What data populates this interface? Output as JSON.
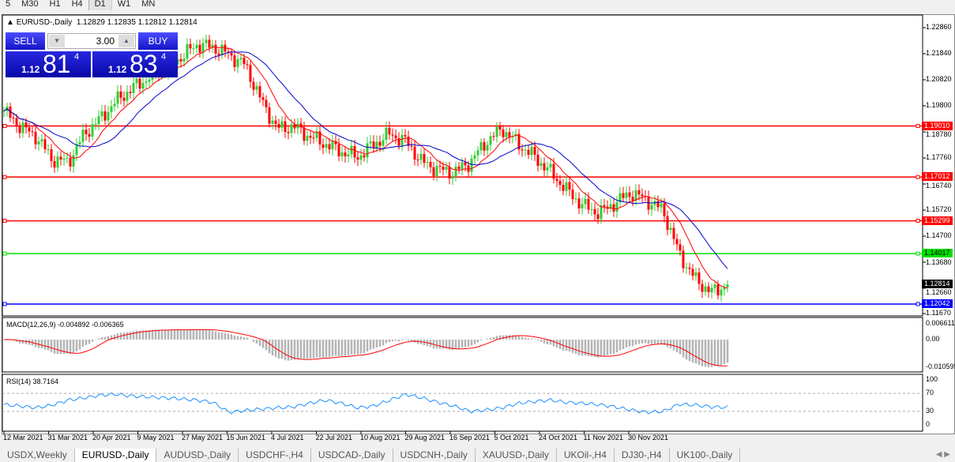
{
  "timeframes": [
    "5",
    "M30",
    "H1",
    "H4",
    "D1",
    "W1",
    "MN"
  ],
  "active_timeframe": "D1",
  "chart": {
    "title": "EURUSD-,Daily",
    "ohlc": "1.12829 1.12835 1.12812 1.12814"
  },
  "trade": {
    "sell": "SELL",
    "buy": "BUY",
    "lot": "3.00",
    "sell_small": "1.12",
    "sell_big": "81",
    "sell_exp": "4",
    "buy_small": "1.12",
    "buy_big": "83",
    "buy_exp": "4"
  },
  "price_axis": [
    "1.22860",
    "1.21840",
    "1.20820",
    "1.19800",
    "1.18780",
    "1.17760",
    "1.16740",
    "1.15720",
    "1.14700",
    "1.13680",
    "1.12660",
    "1.11670"
  ],
  "hlines": [
    {
      "price": "1.19010",
      "color": "#ff0000"
    },
    {
      "price": "1.17012",
      "color": "#ff0000"
    },
    {
      "price": "1.15299",
      "color": "#ff0000"
    },
    {
      "price": "1.14017",
      "color": "#00e000"
    },
    {
      "price": "1.12042",
      "color": "#0000ff"
    }
  ],
  "current_price": "1.12814",
  "macd": {
    "label": "MACD(12,26,9) -0.004892 -0.006365",
    "axis": [
      "0.006611",
      "0.00",
      "-0.010595"
    ]
  },
  "rsi": {
    "label": "RSI(14) 38.7164",
    "axis": [
      "100",
      "70",
      "30",
      "0"
    ],
    "levels": [
      70,
      30
    ],
    "weekly_approx": [
      45,
      42,
      38,
      44,
      55,
      60,
      66,
      68,
      64,
      62,
      60,
      58,
      55,
      50,
      28,
      32,
      35,
      38,
      40,
      48,
      55,
      48,
      38,
      42,
      55,
      68,
      60,
      50,
      42,
      30,
      33,
      38,
      48,
      52,
      55,
      50,
      48,
      45,
      40,
      33,
      28,
      30,
      46,
      44,
      40,
      39
    ]
  },
  "x_axis": [
    "12 Mar 2021",
    "31 Mar 2021",
    "20 Apr 2021",
    "9 May 2021",
    "27 May 2021",
    "15 Jun 2021",
    "4 Jul 2021",
    "22 Jul 2021",
    "10 Aug 2021",
    "29 Aug 2021",
    "16 Sep 2021",
    "5 Oct 2021",
    "24 Oct 2021",
    "11 Nov 2021",
    "30 Nov 2021"
  ],
  "chart_data": {
    "type": "candlestick",
    "series_note": "approximate weekly closes",
    "weekly_close_approx": [
      1.196,
      1.19,
      1.186,
      1.177,
      1.176,
      1.187,
      1.193,
      1.2,
      1.205,
      1.209,
      1.213,
      1.217,
      1.222,
      1.221,
      1.218,
      1.214,
      1.2,
      1.189,
      1.19,
      1.186,
      1.183,
      1.18,
      1.178,
      1.183,
      1.187,
      1.184,
      1.176,
      1.173,
      1.172,
      1.176,
      1.184,
      1.189,
      1.183,
      1.178,
      1.172,
      1.165,
      1.159,
      1.156,
      1.16,
      1.164,
      1.161,
      1.157,
      1.14,
      1.13,
      1.125,
      1.128
    ],
    "ylim": [
      1.1167,
      1.2286
    ],
    "colors": {
      "up": "#32cd32",
      "down": "#ff0000",
      "ma_fast": "#ff0000",
      "ma_slow": "#0000cd"
    }
  },
  "tabs": [
    "USDX,Weekly",
    "EURUSD-,Daily",
    "AUDUSD-,Daily",
    "USDCHF-,H4",
    "USDCAD-,Daily",
    "USDCNH-,Daily",
    "XAUUSD-,Daily",
    "UKOil-,H4",
    "DJ30-,H4",
    "UK100-,Daily"
  ],
  "active_tab": "EURUSD-,Daily"
}
